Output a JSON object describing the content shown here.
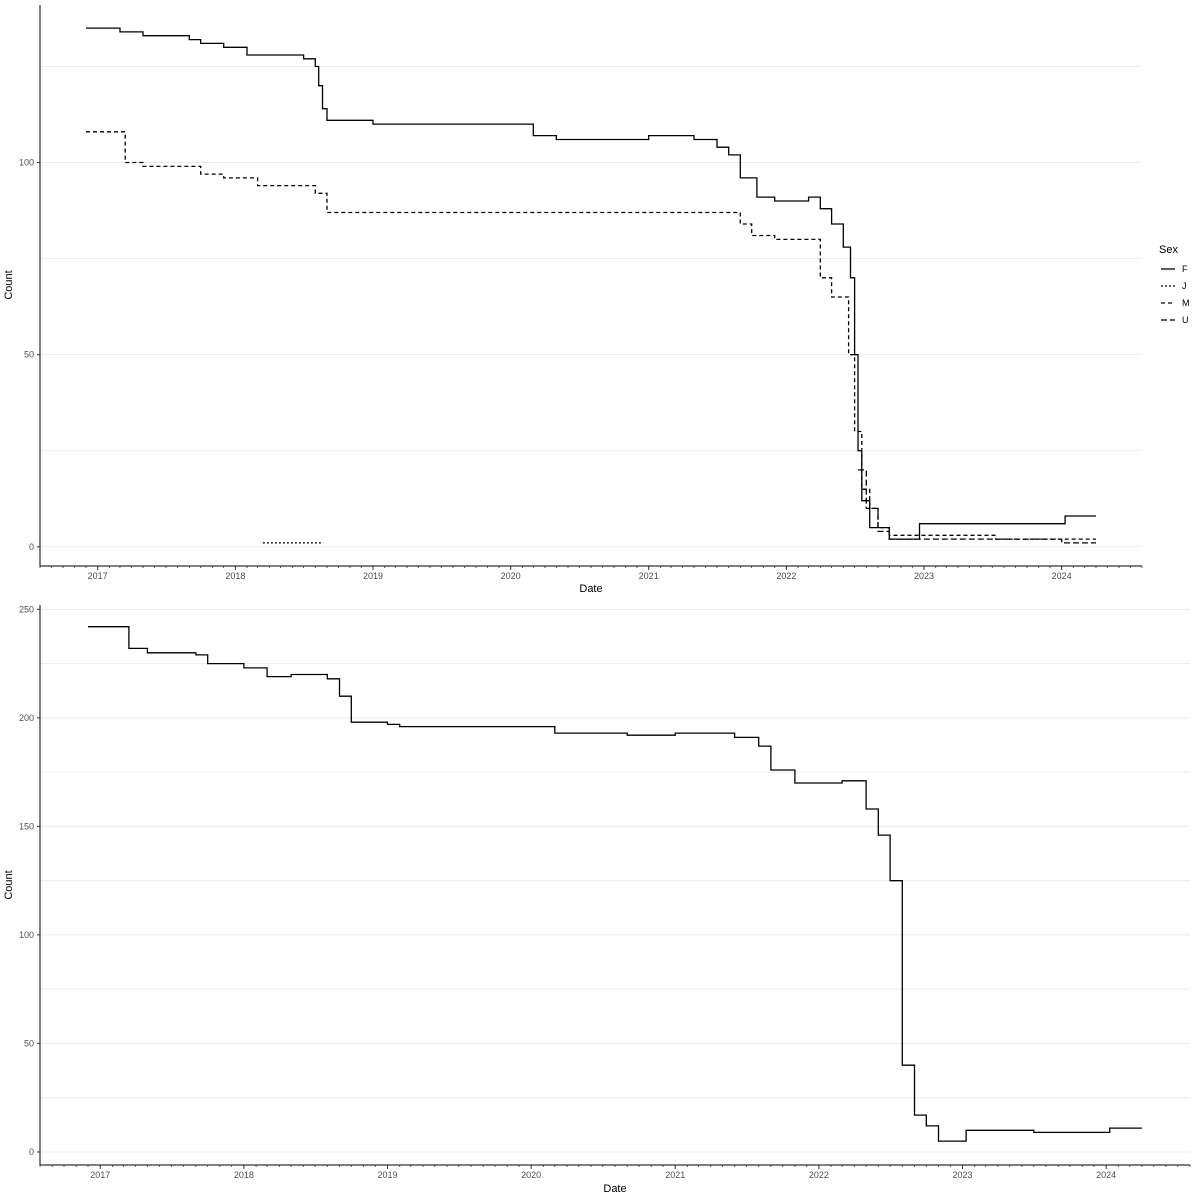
{
  "chart_data": [
    {
      "type": "line",
      "xlabel": "Date",
      "ylabel": "Count",
      "xlim": [
        "2016-08-01",
        "2024-08-01"
      ],
      "ylim": [
        -5,
        141
      ],
      "x_ticks": [
        "2017",
        "2018",
        "2019",
        "2020",
        "2021",
        "2022",
        "2023",
        "2024"
      ],
      "y_ticks": [
        0,
        50,
        100
      ],
      "grid": "horizontal",
      "legend": {
        "title": "Sex",
        "placement": "right",
        "entries": [
          "F",
          "J",
          "M",
          "U"
        ]
      },
      "series": [
        {
          "name": "F",
          "dash": "solid",
          "points": [
            [
              "2016-12-01",
              135
            ],
            [
              "2017-03-01",
              134
            ],
            [
              "2017-05-01",
              133
            ],
            [
              "2017-09-01",
              132
            ],
            [
              "2017-10-01",
              131
            ],
            [
              "2017-12-01",
              130
            ],
            [
              "2018-02-01",
              128
            ],
            [
              "2018-07-01",
              127
            ],
            [
              "2018-08-01",
              125
            ],
            [
              "2018-08-10",
              120
            ],
            [
              "2018-08-20",
              114
            ],
            [
              "2018-09-01",
              111
            ],
            [
              "2019-01-01",
              110
            ],
            [
              "2020-01-01",
              110
            ],
            [
              "2020-03-01",
              107
            ],
            [
              "2020-05-01",
              106
            ],
            [
              "2021-01-01",
              107
            ],
            [
              "2021-05-01",
              106
            ],
            [
              "2021-07-01",
              104
            ],
            [
              "2021-08-01",
              102
            ],
            [
              "2021-09-01",
              96
            ],
            [
              "2021-10-15",
              91
            ],
            [
              "2021-12-01",
              90
            ],
            [
              "2022-01-01",
              90
            ],
            [
              "2022-03-01",
              91
            ],
            [
              "2022-04-01",
              88
            ],
            [
              "2022-05-01",
              84
            ],
            [
              "2022-06-01",
              78
            ],
            [
              "2022-06-20",
              70
            ],
            [
              "2022-07-01",
              50
            ],
            [
              "2022-07-10",
              25
            ],
            [
              "2022-07-20",
              12
            ],
            [
              "2022-08-10",
              5
            ],
            [
              "2022-10-01",
              2
            ],
            [
              "2022-12-10",
              2
            ],
            [
              "2022-12-20",
              6
            ],
            [
              "2024-01-01",
              6
            ],
            [
              "2024-01-10",
              8
            ],
            [
              "2024-04-01",
              8
            ]
          ]
        },
        {
          "name": "J",
          "dash": "dotted",
          "points": [
            [
              "2018-03-15",
              1
            ],
            [
              "2018-08-20",
              1
            ]
          ]
        },
        {
          "name": "M",
          "dash": "dashed",
          "points": [
            [
              "2016-12-01",
              108
            ],
            [
              "2017-03-15",
              100
            ],
            [
              "2017-05-01",
              99
            ],
            [
              "2017-10-01",
              97
            ],
            [
              "2017-12-01",
              96
            ],
            [
              "2018-03-01",
              94
            ],
            [
              "2018-08-01",
              92
            ],
            [
              "2018-09-01",
              87
            ],
            [
              "2020-09-01",
              87
            ],
            [
              "2021-09-01",
              84
            ],
            [
              "2021-10-01",
              81
            ],
            [
              "2021-12-01",
              80
            ],
            [
              "2022-03-01",
              80
            ],
            [
              "2022-04-01",
              70
            ],
            [
              "2022-05-01",
              65
            ],
            [
              "2022-06-15",
              50
            ],
            [
              "2022-07-01",
              30
            ],
            [
              "2022-07-20",
              15
            ],
            [
              "2022-08-10",
              10
            ],
            [
              "2022-09-01",
              5
            ],
            [
              "2022-10-01",
              3
            ],
            [
              "2023-07-01",
              3
            ],
            [
              "2023-07-10",
              2
            ],
            [
              "2024-04-01",
              2
            ]
          ]
        },
        {
          "name": "U",
          "dash": "longdash",
          "points": [
            [
              "2022-07-10",
              20
            ],
            [
              "2022-08-01",
              10
            ],
            [
              "2022-09-01",
              4
            ],
            [
              "2022-10-01",
              2
            ],
            [
              "2024-01-01",
              1
            ],
            [
              "2024-04-01",
              1
            ]
          ]
        }
      ]
    },
    {
      "type": "line",
      "xlabel": "Date",
      "ylabel": "Count",
      "xlim": [
        "2016-08-01",
        "2024-08-01"
      ],
      "ylim": [
        -6,
        252
      ],
      "x_ticks": [
        "2017",
        "2018",
        "2019",
        "2020",
        "2021",
        "2022",
        "2023",
        "2024"
      ],
      "y_ticks": [
        0,
        50,
        100,
        150,
        200,
        250
      ],
      "grid": "horizontal",
      "series": [
        {
          "dash": "solid",
          "points": [
            [
              "2016-12-01",
              242
            ],
            [
              "2017-03-01",
              242
            ],
            [
              "2017-03-15",
              232
            ],
            [
              "2017-05-01",
              230
            ],
            [
              "2017-09-01",
              229
            ],
            [
              "2017-10-01",
              225
            ],
            [
              "2018-01-01",
              223
            ],
            [
              "2018-03-01",
              219
            ],
            [
              "2018-05-01",
              220
            ],
            [
              "2018-08-01",
              218
            ],
            [
              "2018-09-01",
              210
            ],
            [
              "2018-10-01",
              198
            ],
            [
              "2019-01-01",
              197
            ],
            [
              "2019-02-01",
              196
            ],
            [
              "2020-01-01",
              196
            ],
            [
              "2020-03-01",
              193
            ],
            [
              "2020-09-01",
              192
            ],
            [
              "2021-01-01",
              193
            ],
            [
              "2021-06-01",
              191
            ],
            [
              "2021-08-01",
              187
            ],
            [
              "2021-09-01",
              176
            ],
            [
              "2021-11-01",
              170
            ],
            [
              "2022-03-01",
              171
            ],
            [
              "2022-05-01",
              158
            ],
            [
              "2022-06-01",
              146
            ],
            [
              "2022-07-01",
              125
            ],
            [
              "2022-08-01",
              40
            ],
            [
              "2022-09-01",
              17
            ],
            [
              "2022-10-01",
              12
            ],
            [
              "2022-11-01",
              5
            ],
            [
              "2023-01-01",
              5
            ],
            [
              "2023-01-10",
              10
            ],
            [
              "2023-07-01",
              9
            ],
            [
              "2024-01-01",
              9
            ],
            [
              "2024-01-10",
              11
            ],
            [
              "2024-04-01",
              11
            ]
          ]
        }
      ]
    }
  ]
}
